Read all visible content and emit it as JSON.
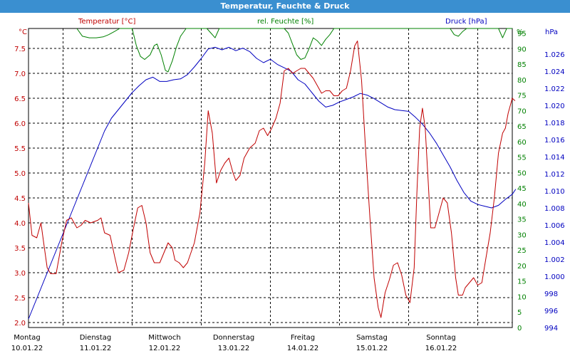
{
  "window": {
    "title": "Temperatur, Feuchte & Druck"
  },
  "chart_data": {
    "type": "line",
    "title": "Temperatur, Feuchte & Druck",
    "colors": {
      "temperature": "#c00000",
      "humidity": "#008000",
      "pressure": "#0000c0",
      "grid": "#000000"
    },
    "axes": {
      "temperature": {
        "unit": "°C",
        "min": 1.9,
        "max": 7.9,
        "ticks": [
          "2.0",
          "2.5",
          "3.0",
          "3.5",
          "4.0",
          "4.5",
          "5.0",
          "5.5",
          "6.0",
          "6.5",
          "7.0",
          "7.5"
        ]
      },
      "humidity": {
        "unit": "%",
        "min": 0,
        "max": 96.5,
        "ticks": [
          "0",
          "5",
          "10",
          "15",
          "20",
          "25",
          "30",
          "35",
          "40",
          "45",
          "50",
          "55",
          "60",
          "65",
          "70",
          "75",
          "80",
          "85",
          "90",
          "95"
        ]
      },
      "pressure": {
        "unit": "hPa",
        "min": 994,
        "max": 1029,
        "ticks": [
          "994",
          "996",
          "998",
          "1.000",
          "1.002",
          "1.004",
          "1.006",
          "1.008",
          "1.010",
          "1.012",
          "1.014",
          "1.016",
          "1.018",
          "1.020",
          "1.022",
          "1.024",
          "1.026"
        ]
      }
    },
    "legend": {
      "temperature": "Temperatur [°C]",
      "humidity": "rel. Feuchte [%]",
      "pressure": "Druck [hPa]"
    },
    "days": [
      {
        "day": "Montag",
        "date": "10.01.22"
      },
      {
        "day": "Dienstag",
        "date": "11.01.22"
      },
      {
        "day": "Mittwoch",
        "date": "12.01.22"
      },
      {
        "day": "Donnerstag",
        "date": "13.01.22"
      },
      {
        "day": "Freitag",
        "date": "14.01.22"
      },
      {
        "day": "Samstag",
        "date": "15.01.22"
      },
      {
        "day": "Sonntag",
        "date": "16.01.22"
      }
    ],
    "x_range": [
      0,
      7
    ],
    "grid": true,
    "series": [
      {
        "name": "Temperatur [°C]",
        "axis": "temperature",
        "points": [
          [
            0.0,
            4.4
          ],
          [
            0.05,
            3.75
          ],
          [
            0.12,
            3.7
          ],
          [
            0.18,
            4.0
          ],
          [
            0.22,
            3.6
          ],
          [
            0.27,
            3.1
          ],
          [
            0.32,
            2.98
          ],
          [
            0.4,
            2.98
          ],
          [
            0.48,
            3.6
          ],
          [
            0.55,
            4.05
          ],
          [
            0.62,
            4.1
          ],
          [
            0.7,
            3.9
          ],
          [
            0.76,
            3.95
          ],
          [
            0.82,
            4.05
          ],
          [
            0.9,
            4.0
          ],
          [
            1.0,
            4.05
          ],
          [
            1.05,
            4.1
          ],
          [
            1.1,
            3.8
          ],
          [
            1.18,
            3.75
          ],
          [
            1.25,
            3.3
          ],
          [
            1.3,
            3.0
          ],
          [
            1.38,
            3.05
          ],
          [
            1.45,
            3.4
          ],
          [
            1.52,
            3.9
          ],
          [
            1.58,
            4.3
          ],
          [
            1.64,
            4.35
          ],
          [
            1.7,
            4.0
          ],
          [
            1.76,
            3.4
          ],
          [
            1.82,
            3.2
          ],
          [
            1.9,
            3.2
          ],
          [
            1.96,
            3.4
          ],
          [
            2.02,
            3.6
          ],
          [
            2.08,
            3.5
          ],
          [
            2.12,
            3.25
          ],
          [
            2.18,
            3.2
          ],
          [
            2.24,
            3.1
          ],
          [
            2.3,
            3.2
          ],
          [
            2.4,
            3.6
          ],
          [
            2.48,
            4.2
          ],
          [
            2.55,
            5.2
          ],
          [
            2.6,
            6.25
          ],
          [
            2.66,
            5.8
          ],
          [
            2.72,
            4.8
          ],
          [
            2.78,
            5.05
          ],
          [
            2.84,
            5.2
          ],
          [
            2.9,
            5.3
          ],
          [
            2.96,
            5.0
          ],
          [
            3.0,
            4.85
          ],
          [
            3.06,
            4.95
          ],
          [
            3.12,
            5.3
          ],
          [
            3.2,
            5.5
          ],
          [
            3.28,
            5.6
          ],
          [
            3.34,
            5.85
          ],
          [
            3.4,
            5.9
          ],
          [
            3.46,
            5.75
          ],
          [
            3.52,
            5.9
          ],
          [
            3.58,
            6.1
          ],
          [
            3.64,
            6.4
          ],
          [
            3.7,
            7.05
          ],
          [
            3.76,
            7.1
          ],
          [
            3.82,
            7.0
          ],
          [
            3.88,
            7.05
          ],
          [
            3.94,
            7.1
          ],
          [
            4.0,
            7.1
          ],
          [
            4.06,
            7.0
          ],
          [
            4.12,
            6.9
          ],
          [
            4.18,
            6.75
          ],
          [
            4.24,
            6.6
          ],
          [
            4.3,
            6.65
          ],
          [
            4.36,
            6.65
          ],
          [
            4.42,
            6.55
          ],
          [
            4.48,
            6.55
          ],
          [
            4.54,
            6.65
          ],
          [
            4.6,
            6.7
          ],
          [
            4.66,
            7.05
          ],
          [
            4.72,
            7.55
          ],
          [
            4.76,
            7.65
          ],
          [
            4.82,
            6.85
          ],
          [
            4.88,
            5.4
          ],
          [
            4.94,
            4.1
          ],
          [
            5.0,
            2.9
          ],
          [
            5.06,
            2.3
          ],
          [
            5.1,
            2.1
          ],
          [
            5.16,
            2.6
          ],
          [
            5.22,
            2.85
          ],
          [
            5.28,
            3.15
          ],
          [
            5.34,
            3.2
          ],
          [
            5.4,
            2.95
          ],
          [
            5.46,
            2.55
          ],
          [
            5.52,
            2.4
          ],
          [
            5.58,
            3.1
          ],
          [
            5.62,
            4.6
          ],
          [
            5.66,
            5.9
          ],
          [
            5.7,
            6.3
          ],
          [
            5.74,
            5.9
          ],
          [
            5.78,
            4.9
          ],
          [
            5.82,
            3.9
          ],
          [
            5.88,
            3.9
          ],
          [
            5.94,
            4.2
          ],
          [
            6.0,
            4.5
          ],
          [
            6.06,
            4.4
          ],
          [
            6.12,
            3.8
          ],
          [
            6.18,
            2.9
          ],
          [
            6.22,
            2.55
          ],
          [
            6.28,
            2.55
          ],
          [
            6.32,
            2.7
          ],
          [
            6.38,
            2.8
          ],
          [
            6.44,
            2.9
          ],
          [
            6.5,
            2.75
          ],
          [
            6.56,
            2.8
          ],
          [
            6.62,
            3.3
          ],
          [
            6.68,
            3.8
          ],
          [
            6.74,
            4.5
          ],
          [
            6.8,
            5.4
          ],
          [
            6.86,
            5.8
          ],
          [
            6.9,
            5.9
          ],
          [
            6.94,
            6.2
          ],
          [
            7.0,
            6.5
          ],
          [
            7.04,
            6.45
          ]
        ]
      },
      {
        "name": "rel. Feuchte [%]",
        "axis": "humidity",
        "points": [
          [
            0.7,
            96.5
          ],
          [
            0.78,
            94.0
          ],
          [
            0.88,
            93.5
          ],
          [
            0.98,
            93.5
          ],
          [
            1.08,
            93.8
          ],
          [
            1.16,
            94.5
          ],
          [
            1.24,
            95.5
          ],
          [
            1.32,
            96.5
          ],
          [
            1.5,
            96.5
          ],
          [
            1.56,
            91.0
          ],
          [
            1.62,
            87.5
          ],
          [
            1.68,
            86.5
          ],
          [
            1.76,
            88.0
          ],
          [
            1.82,
            91.0
          ],
          [
            1.86,
            91.5
          ],
          [
            1.92,
            88.0
          ],
          [
            1.98,
            83.0
          ],
          [
            2.02,
            82.5
          ],
          [
            2.08,
            86.0
          ],
          [
            2.14,
            90.5
          ],
          [
            2.2,
            94.0
          ],
          [
            2.28,
            96.5
          ],
          [
            2.58,
            96.5
          ],
          [
            2.64,
            95.0
          ],
          [
            2.7,
            93.5
          ],
          [
            2.76,
            96.5
          ],
          [
            3.7,
            96.5
          ],
          [
            3.76,
            95.0
          ],
          [
            3.82,
            91.5
          ],
          [
            3.88,
            88.0
          ],
          [
            3.94,
            86.5
          ],
          [
            4.0,
            87.0
          ],
          [
            4.06,
            90.0
          ],
          [
            4.12,
            93.5
          ],
          [
            4.18,
            92.5
          ],
          [
            4.24,
            91.0
          ],
          [
            4.3,
            93.0
          ],
          [
            4.36,
            94.5
          ],
          [
            4.42,
            96.5
          ],
          [
            4.46,
            96.5
          ],
          [
            6.1,
            96.5
          ],
          [
            6.16,
            94.5
          ],
          [
            6.22,
            94.0
          ],
          [
            6.28,
            95.5
          ],
          [
            6.34,
            96.5
          ],
          [
            6.8,
            96.5
          ],
          [
            6.86,
            93.5
          ],
          [
            6.92,
            97.0
          ],
          [
            7.0,
            96.5
          ]
        ]
      },
      {
        "name": "Druck [hPa]",
        "axis": "pressure",
        "points": [
          [
            0.0,
            995.0
          ],
          [
            0.1,
            997.0
          ],
          [
            0.2,
            999.0
          ],
          [
            0.3,
            1001.0
          ],
          [
            0.4,
            1003.0
          ],
          [
            0.5,
            1005.0
          ],
          [
            0.6,
            1007.0
          ],
          [
            0.7,
            1009.0
          ],
          [
            0.8,
            1011.0
          ],
          [
            0.9,
            1013.0
          ],
          [
            1.0,
            1015.0
          ],
          [
            1.1,
            1017.0
          ],
          [
            1.2,
            1018.5
          ],
          [
            1.3,
            1019.5
          ],
          [
            1.4,
            1020.5
          ],
          [
            1.5,
            1021.5
          ],
          [
            1.6,
            1022.3
          ],
          [
            1.7,
            1023.0
          ],
          [
            1.8,
            1023.3
          ],
          [
            1.9,
            1022.8
          ],
          [
            2.0,
            1022.8
          ],
          [
            2.1,
            1023.0
          ],
          [
            2.2,
            1023.1
          ],
          [
            2.3,
            1023.6
          ],
          [
            2.4,
            1024.5
          ],
          [
            2.5,
            1025.5
          ],
          [
            2.6,
            1026.6
          ],
          [
            2.7,
            1026.8
          ],
          [
            2.8,
            1026.5
          ],
          [
            2.9,
            1026.8
          ],
          [
            3.0,
            1026.4
          ],
          [
            3.1,
            1026.7
          ],
          [
            3.2,
            1026.3
          ],
          [
            3.3,
            1025.5
          ],
          [
            3.4,
            1025.0
          ],
          [
            3.5,
            1025.4
          ],
          [
            3.6,
            1024.8
          ],
          [
            3.7,
            1024.4
          ],
          [
            3.8,
            1024.0
          ],
          [
            3.9,
            1023.0
          ],
          [
            4.0,
            1022.5
          ],
          [
            4.1,
            1021.5
          ],
          [
            4.2,
            1020.5
          ],
          [
            4.3,
            1019.8
          ],
          [
            4.4,
            1020.0
          ],
          [
            4.5,
            1020.4
          ],
          [
            4.6,
            1020.7
          ],
          [
            4.7,
            1021.0
          ],
          [
            4.8,
            1021.4
          ],
          [
            4.9,
            1021.2
          ],
          [
            5.0,
            1020.8
          ],
          [
            5.1,
            1020.3
          ],
          [
            5.2,
            1019.8
          ],
          [
            5.3,
            1019.5
          ],
          [
            5.4,
            1019.4
          ],
          [
            5.5,
            1019.3
          ],
          [
            5.6,
            1018.6
          ],
          [
            5.7,
            1017.8
          ],
          [
            5.8,
            1016.8
          ],
          [
            5.9,
            1015.6
          ],
          [
            6.0,
            1014.2
          ],
          [
            6.1,
            1012.8
          ],
          [
            6.2,
            1011.2
          ],
          [
            6.3,
            1009.8
          ],
          [
            6.4,
            1008.8
          ],
          [
            6.5,
            1008.4
          ],
          [
            6.6,
            1008.2
          ],
          [
            6.7,
            1008.0
          ],
          [
            6.8,
            1008.3
          ],
          [
            6.9,
            1009.0
          ],
          [
            7.0,
            1009.6
          ],
          [
            7.05,
            1010.2
          ]
        ]
      }
    ]
  }
}
